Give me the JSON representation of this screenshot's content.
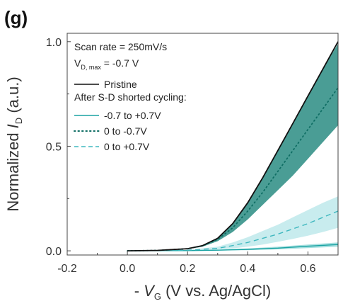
{
  "panel_label": "(g)",
  "chart_data": {
    "type": "line",
    "xlabel": {
      "prefix": "- ",
      "var": "V",
      "sub": "G",
      "suffix": " (V vs. Ag/AgCl)"
    },
    "ylabel": {
      "prefix": "Normalized ",
      "var": "I",
      "sub": "D",
      "suffix": " (a.u.)"
    },
    "xlim": [
      -0.2,
      0.7
    ],
    "ylim": [
      -0.02,
      1.04
    ],
    "x_ticks": [
      -0.2,
      0.0,
      0.2,
      0.4,
      0.6
    ],
    "x_tick_labels": [
      "-0.2",
      "0.0",
      "0.2",
      "0.4",
      "0.6"
    ],
    "y_ticks": [
      0.0,
      0.5,
      1.0
    ],
    "y_tick_labels": [
      "0.0",
      "0.5",
      "1.0"
    ],
    "grid": false,
    "annotations": {
      "line1": "Scan rate = 250mV/s",
      "line2_main": "V",
      "line2_sub": "D, max",
      "line2_rest": " = -0.7 V",
      "header": "After S-D shorted cycling:"
    },
    "series": [
      {
        "name": "Pristine",
        "style": "solid",
        "color": "#111111",
        "x": [
          0.0,
          0.1,
          0.2,
          0.25,
          0.3,
          0.35,
          0.4,
          0.45,
          0.5,
          0.55,
          0.6,
          0.65,
          0.7
        ],
        "y": [
          0.0,
          0.002,
          0.01,
          0.025,
          0.06,
          0.13,
          0.23,
          0.35,
          0.48,
          0.61,
          0.74,
          0.87,
          1.0
        ]
      },
      {
        "name": "-0.7 to +0.7V",
        "style": "solid",
        "color": "#1aa3a3",
        "band_color": "#5cc4c4",
        "x": [
          0.0,
          0.2,
          0.3,
          0.4,
          0.5,
          0.6,
          0.7
        ],
        "y": [
          0.0,
          0.001,
          0.003,
          0.007,
          0.013,
          0.022,
          0.03
        ],
        "upper": [
          0.0,
          0.002,
          0.005,
          0.011,
          0.02,
          0.03,
          0.04
        ],
        "lower": [
          0.0,
          0.0,
          0.001,
          0.003,
          0.007,
          0.013,
          0.02
        ]
      },
      {
        "name": "0 to -0.7V",
        "style": "dotted",
        "color": "#0f6e64",
        "band_color": "#2a8c82",
        "x": [
          0.0,
          0.1,
          0.2,
          0.25,
          0.3,
          0.35,
          0.4,
          0.45,
          0.5,
          0.55,
          0.6,
          0.65,
          0.7
        ],
        "y": [
          0.0,
          0.002,
          0.01,
          0.024,
          0.055,
          0.11,
          0.19,
          0.28,
          0.38,
          0.48,
          0.58,
          0.68,
          0.78
        ],
        "upper": [
          0.0,
          0.002,
          0.011,
          0.027,
          0.062,
          0.13,
          0.23,
          0.35,
          0.48,
          0.61,
          0.74,
          0.87,
          0.99
        ],
        "lower": [
          0.0,
          0.001,
          0.008,
          0.02,
          0.046,
          0.09,
          0.15,
          0.22,
          0.29,
          0.36,
          0.44,
          0.52,
          0.6
        ]
      },
      {
        "name": "0 to +0.7V",
        "style": "dashed",
        "color": "#3fb8bf",
        "band_color": "#9bdde0",
        "x": [
          0.0,
          0.2,
          0.3,
          0.35,
          0.4,
          0.45,
          0.5,
          0.55,
          0.6,
          0.65,
          0.7
        ],
        "y": [
          0.0,
          0.003,
          0.012,
          0.025,
          0.04,
          0.06,
          0.08,
          0.105,
          0.13,
          0.16,
          0.19
        ],
        "upper": [
          0.0,
          0.004,
          0.02,
          0.04,
          0.065,
          0.095,
          0.125,
          0.16,
          0.195,
          0.23,
          0.26
        ],
        "lower": [
          0.0,
          0.001,
          0.006,
          0.012,
          0.02,
          0.03,
          0.043,
          0.057,
          0.072,
          0.09,
          0.11
        ]
      }
    ]
  }
}
